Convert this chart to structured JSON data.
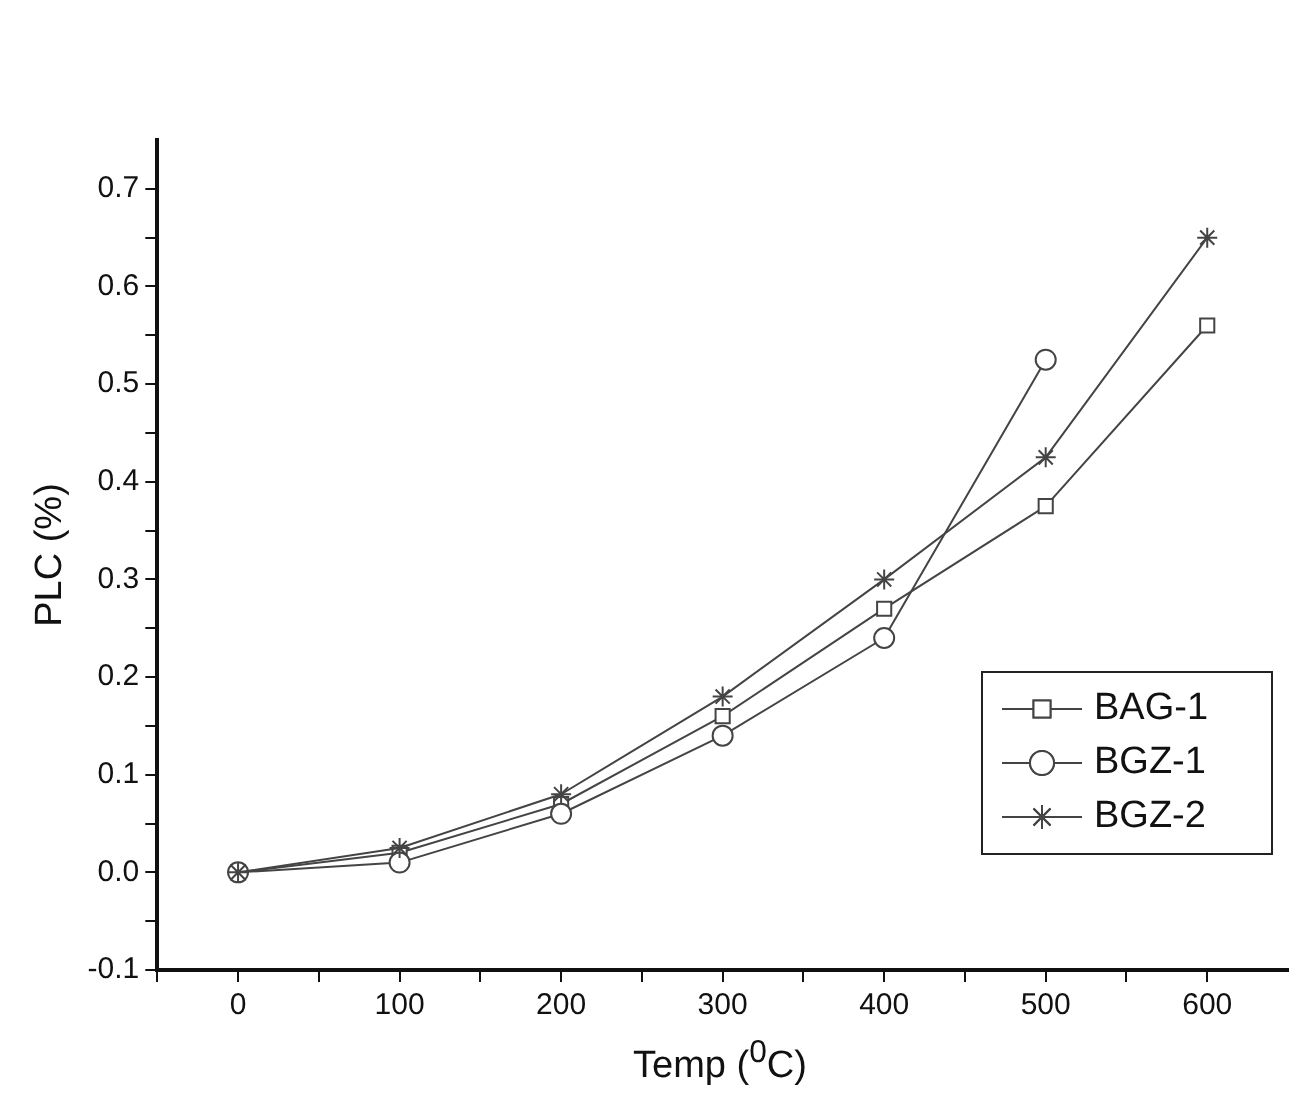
{
  "chart_data": {
    "type": "line",
    "xlabel": "Temp ($^{0}$C)",
    "ylabel": "PLC (%)",
    "x": [
      0,
      100,
      200,
      300,
      400,
      500,
      600
    ],
    "series": [
      {
        "name": "BAG-1",
        "color": "#444444",
        "marker": "square",
        "values": [
          0,
          0.02,
          0.07,
          0.16,
          0.27,
          0.375,
          0.56
        ]
      },
      {
        "name": "BGZ-1",
        "color": "#444444",
        "marker": "circle",
        "values": [
          0,
          0.01,
          0.06,
          0.14,
          0.24,
          0.525,
          null
        ]
      },
      {
        "name": "BGZ-2",
        "color": "#444444",
        "marker": "cross",
        "values": [
          0,
          0.025,
          0.08,
          0.18,
          0.3,
          0.425,
          0.65
        ]
      }
    ],
    "xlim": [
      -50,
      650
    ],
    "xticks": [
      {
        "value": -50,
        "label": null
      },
      0,
      {
        "value": 50,
        "label": null
      },
      100,
      {
        "value": 150,
        "label": null
      },
      200,
      {
        "value": 250,
        "label": null
      },
      300,
      {
        "value": 350,
        "label": null
      },
      400,
      {
        "value": 450,
        "label": null
      },
      500,
      {
        "value": 550,
        "label": null
      },
      600
    ],
    "ylim": [
      -0.1,
      0.75
    ],
    "yticks": [
      {
        "value": -0.1,
        "label": "-0.1"
      },
      {
        "value": -0.05,
        "label": null
      },
      {
        "value": 0,
        "label": "0.0"
      },
      {
        "value": 0.05,
        "label": null
      },
      {
        "value": 0.1,
        "label": "0.1"
      },
      {
        "value": 0.15,
        "label": null
      },
      {
        "value": 0.2,
        "label": "0.2"
      },
      {
        "value": 0.25,
        "label": null
      },
      {
        "value": 0.3,
        "label": "0.3"
      },
      {
        "value": 0.35,
        "label": null
      },
      {
        "value": 0.4,
        "label": "0.4"
      },
      {
        "value": 0.45,
        "label": null
      },
      {
        "value": 0.5,
        "label": "0.5"
      },
      {
        "value": 0.55,
        "label": null
      },
      {
        "value": 0.6,
        "label": "0.6"
      },
      {
        "value": 0.65,
        "label": null
      },
      {
        "value": 0.7,
        "label": "0.7"
      }
    ],
    "grid": false,
    "legend": "bottom right",
    "line_style": "solid"
  }
}
